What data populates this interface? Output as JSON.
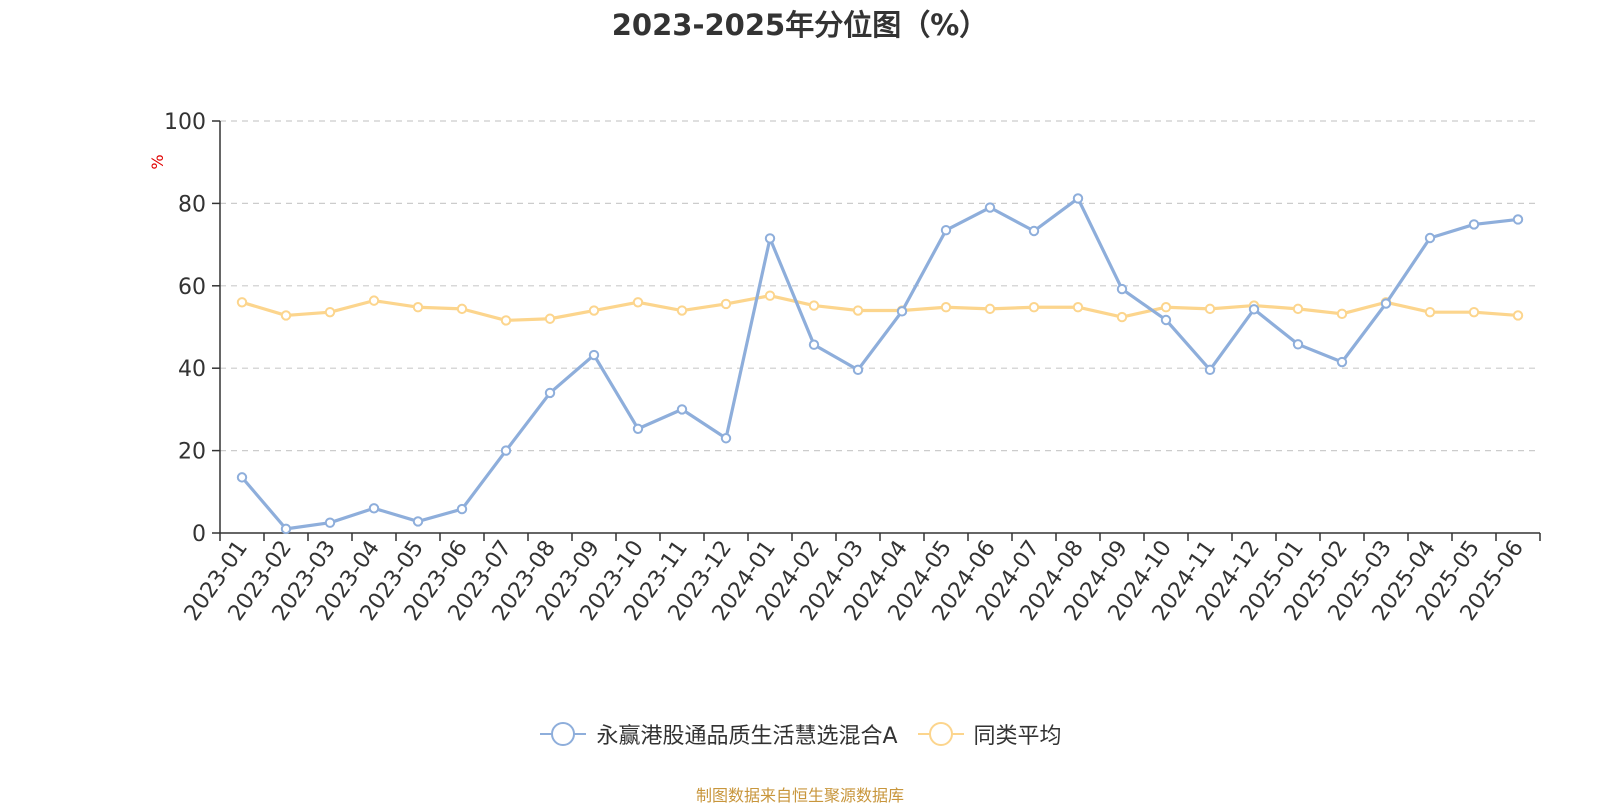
{
  "chart_data": {
    "type": "line",
    "title": "2023-2025年分位图（%）",
    "ylabel": "%",
    "xlabel": "",
    "ylim": [
      0,
      100
    ],
    "yticks": [
      0,
      20,
      40,
      60,
      80,
      100
    ],
    "grid": true,
    "legend_position": "bottom",
    "categories": [
      "2023-01",
      "2023-02",
      "2023-03",
      "2023-04",
      "2023-05",
      "2023-06",
      "2023-07",
      "2023-08",
      "2023-09",
      "2023-10",
      "2023-11",
      "2023-12",
      "2024-01",
      "2024-02",
      "2024-03",
      "2024-04",
      "2024-05",
      "2024-06",
      "2024-07",
      "2024-08",
      "2024-09",
      "2024-10",
      "2024-11",
      "2024-12",
      "2025-01",
      "2025-02",
      "2025-03",
      "2025-04",
      "2025-05",
      "2025-06"
    ],
    "series": [
      {
        "name": "永赢港股通品质生活慧选混合A",
        "color": "#8eaedb",
        "values": [
          13.5,
          1.0,
          2.5,
          6.0,
          2.8,
          5.8,
          20.0,
          34.0,
          43.2,
          25.3,
          30.0,
          23.0,
          71.5,
          45.7,
          39.6,
          53.8,
          73.5,
          79.0,
          73.3,
          81.2,
          59.2,
          51.7,
          39.6,
          54.3,
          45.8,
          41.5,
          55.7,
          71.6,
          74.9,
          76.1
        ]
      },
      {
        "name": "同类平均",
        "color": "#fcd58d",
        "values": [
          56.0,
          52.8,
          53.6,
          56.4,
          54.8,
          54.4,
          51.6,
          52.0,
          54.0,
          56.0,
          54.0,
          55.6,
          57.6,
          55.2,
          54.0,
          54.0,
          54.8,
          54.4,
          54.8,
          54.8,
          52.4,
          54.8,
          54.4,
          55.2,
          54.4,
          53.2,
          56.0,
          53.6,
          53.6,
          52.8
        ]
      }
    ]
  },
  "source_text": "制图数据来自恒生聚源数据库"
}
